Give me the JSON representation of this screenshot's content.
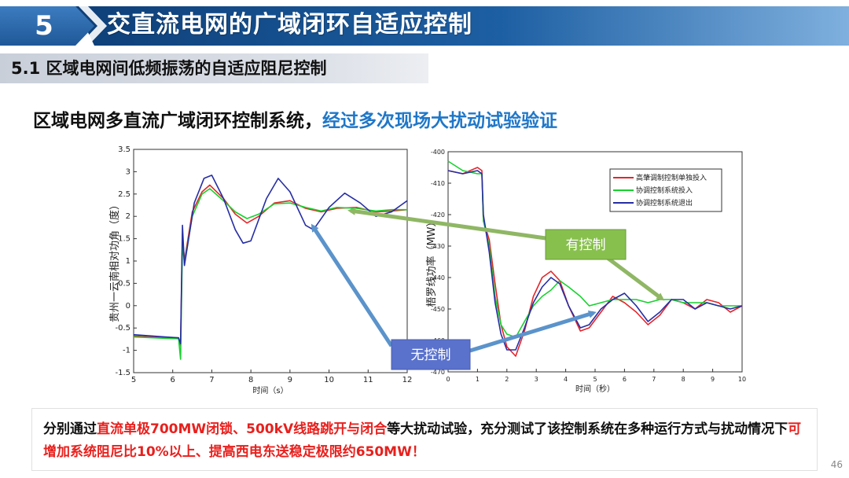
{
  "header": {
    "section_number": "5",
    "title": "交直流电网的广域闭环自适应控制"
  },
  "subheader": {
    "title": "5.1 区域电网间低频振荡的自适应阻尼控制"
  },
  "claim": {
    "part1": "区域电网多直流广域闭环控制系统，",
    "part2": "经过多次现场大扰动试验验证"
  },
  "summary": {
    "p1": "分别通过",
    "h1": "直流单极700MW闭锁、500kV线路跳开与闭合",
    "p2": "等大扰动试验，充分测试了该控制系统在多种运行方式与扰动情况下",
    "h2": "可增加系统阻尼比10%以上、提高西电东送稳定极限约650MW！"
  },
  "page_number": "46",
  "callouts": {
    "with_control": "有控制",
    "without_control": "无控制"
  },
  "colors": {
    "red": "#e3262b",
    "green": "#17d12e",
    "blue": "#262ea3",
    "accent_blue": "#1f77c8",
    "highlight_red": "#e8201d"
  },
  "chart_data": [
    {
      "type": "line",
      "xlabel": "时间（s）",
      "ylabel": "贵州一云南相对功角（度）",
      "xlim": [
        5,
        12
      ],
      "ylim": [
        -1.5,
        3.5
      ],
      "xticks": [
        5,
        6,
        7,
        8,
        9,
        10,
        11,
        12
      ],
      "yticks": [
        -1.5,
        -1,
        -0.5,
        0,
        0.5,
        1,
        1.5,
        2,
        2.5,
        3,
        3.5
      ],
      "series": [
        {
          "color": "#e3262b",
          "x": [
            5,
            5.8,
            6.15,
            6.2,
            6.25,
            6.3,
            6.5,
            6.75,
            6.95,
            7.3,
            7.6,
            7.9,
            8.2,
            8.6,
            9,
            9.4,
            9.8,
            10.2,
            10.7,
            11.2,
            11.6,
            12
          ],
          "y": [
            -0.68,
            -0.72,
            -0.72,
            -0.9,
            1.6,
            1.0,
            2.1,
            2.55,
            2.7,
            2.4,
            2.05,
            1.85,
            2.0,
            2.3,
            2.35,
            2.18,
            2.1,
            2.18,
            2.2,
            2.1,
            2.12,
            2.15
          ]
        },
        {
          "color": "#17d12e",
          "x": [
            5,
            5.8,
            6.15,
            6.2,
            6.25,
            6.3,
            6.5,
            6.75,
            6.95,
            7.3,
            7.6,
            7.9,
            8.2,
            8.6,
            9,
            9.4,
            9.8,
            10.2,
            10.7,
            11.2,
            11.6,
            12
          ],
          "y": [
            -0.7,
            -0.73,
            -0.74,
            -1.2,
            1.4,
            0.95,
            2.0,
            2.5,
            2.62,
            2.35,
            2.1,
            1.95,
            2.05,
            2.28,
            2.3,
            2.2,
            2.12,
            2.2,
            2.18,
            2.12,
            2.15,
            2.15
          ]
        },
        {
          "color": "#262ea3",
          "x": [
            5,
            5.8,
            6.15,
            6.2,
            6.25,
            6.3,
            6.55,
            6.8,
            7.0,
            7.3,
            7.6,
            7.8,
            8.0,
            8.4,
            8.7,
            9.0,
            9.4,
            9.6,
            10.0,
            10.4,
            10.8,
            11.2,
            11.6,
            12
          ],
          "y": [
            -0.65,
            -0.7,
            -0.72,
            -0.85,
            1.8,
            0.9,
            2.3,
            2.85,
            2.92,
            2.4,
            1.7,
            1.4,
            1.45,
            2.4,
            2.85,
            2.55,
            1.8,
            1.7,
            2.2,
            2.52,
            2.3,
            2.0,
            2.1,
            2.35
          ]
        }
      ]
    },
    {
      "type": "line",
      "xlabel": "时间（秒）",
      "ylabel": "梧罗线功率（MW）",
      "xlim": [
        0,
        10
      ],
      "ylim": [
        -470,
        -400
      ],
      "xticks": [
        0,
        1,
        2,
        3,
        4,
        5,
        6,
        7,
        8,
        9,
        10
      ],
      "yticks": [
        -470,
        -460,
        -450,
        -440,
        -430,
        -420,
        -410,
        -400
      ],
      "legend": {
        "position": "top-right"
      },
      "series": [
        {
          "name": "高肇调制控制单独投入",
          "color": "#e3262b",
          "x": [
            0,
            0.5,
            1.0,
            1.15,
            1.2,
            1.4,
            1.6,
            1.8,
            2.0,
            2.3,
            2.6,
            2.9,
            3.2,
            3.5,
            3.8,
            4.1,
            4.5,
            4.8,
            5.2,
            5.6,
            6.0,
            6.4,
            6.8,
            7.2,
            7.6,
            8.0,
            8.4,
            8.8,
            9.2,
            9.6,
            10
          ],
          "y": [
            -406,
            -407,
            -405,
            -406,
            -422,
            -428,
            -442,
            -455,
            -462,
            -465,
            -457,
            -446,
            -440,
            -438,
            -441,
            -449,
            -457,
            -456,
            -451,
            -446,
            -448,
            -451,
            -455,
            -452,
            -447,
            -448,
            -450,
            -447,
            -448,
            -451,
            -449
          ]
        },
        {
          "name": "协调控制系统投入",
          "color": "#17d12e",
          "x": [
            0,
            0.5,
            1.0,
            1.15,
            1.2,
            1.4,
            1.6,
            1.8,
            2.0,
            2.3,
            2.6,
            2.9,
            3.2,
            3.5,
            3.8,
            4.1,
            4.5,
            4.8,
            5.2,
            5.6,
            6.0,
            6.4,
            6.8,
            7.2,
            7.6,
            8.0,
            8.4,
            8.8,
            9.2,
            9.6,
            10
          ],
          "y": [
            -403,
            -406,
            -407,
            -407,
            -422,
            -430,
            -446,
            -455,
            -458,
            -459,
            -454,
            -449,
            -446,
            -444,
            -441,
            -443,
            -446,
            -449,
            -448,
            -447,
            -447,
            -447,
            -448,
            -447,
            -447,
            -448,
            -448,
            -448,
            -449,
            -449,
            -449
          ]
        },
        {
          "name": "协调控制系统退出",
          "color": "#262ea3",
          "x": [
            0,
            0.5,
            1.0,
            1.15,
            1.2,
            1.4,
            1.6,
            1.8,
            2.0,
            2.3,
            2.6,
            2.9,
            3.2,
            3.5,
            3.8,
            4.1,
            4.5,
            4.8,
            5.2,
            5.6,
            6.0,
            6.4,
            6.8,
            7.2,
            7.6,
            8.0,
            8.4,
            8.8,
            9.2,
            9.6,
            10
          ],
          "y": [
            -406,
            -407,
            -406,
            -407,
            -420,
            -432,
            -448,
            -458,
            -463,
            -463,
            -456,
            -448,
            -443,
            -440,
            -442,
            -449,
            -456,
            -455,
            -450,
            -447,
            -445,
            -449,
            -454,
            -451,
            -447,
            -447,
            -450,
            -448,
            -449,
            -450,
            -449
          ]
        }
      ]
    }
  ]
}
